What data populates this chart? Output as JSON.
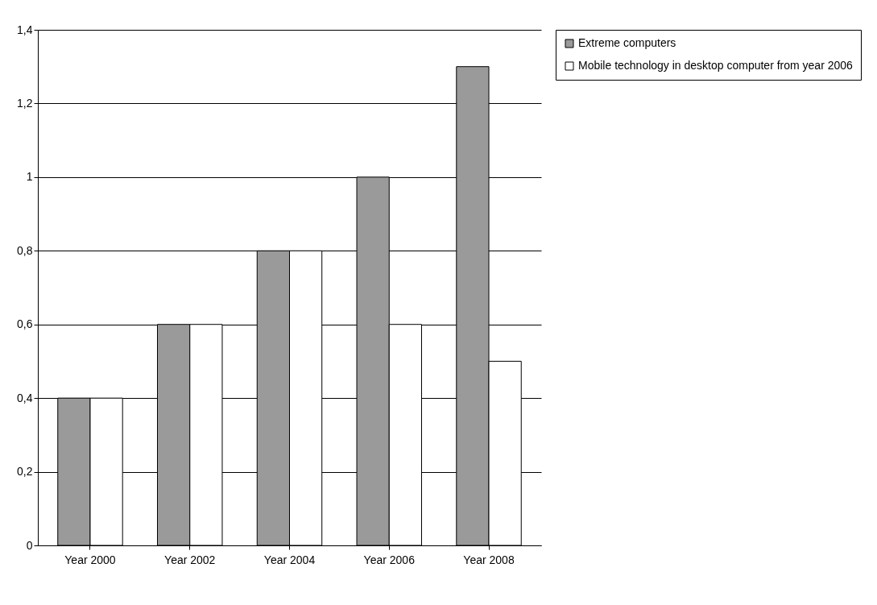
{
  "chart_data": {
    "type": "bar",
    "categories": [
      "Year 2000",
      "Year 2002",
      "Year 2004",
      "Year 2006",
      "Year 2008"
    ],
    "series": [
      {
        "name": "Extreme computers",
        "color": "#9a9a9a",
        "values": [
          0.4,
          0.6,
          0.8,
          1.0,
          1.3
        ]
      },
      {
        "name": "Mobile technology in desktop computer from year 2006",
        "color": "#ffffff",
        "values": [
          0.4,
          0.6,
          0.8,
          0.6,
          0.5
        ]
      }
    ],
    "ylim": [
      0,
      1.4
    ],
    "yticks": [
      0,
      {
        "value": 0.2,
        "label": "0,2"
      },
      {
        "value": 0.4,
        "label": "0,4"
      },
      {
        "value": 0.6,
        "label": "0,6"
      },
      {
        "value": 0.8,
        "label": "0,8"
      },
      1,
      {
        "value": 1.2,
        "label": "1,2"
      },
      {
        "value": 1.4,
        "label": "1,4"
      }
    ],
    "grid": "y",
    "legend": "right"
  }
}
